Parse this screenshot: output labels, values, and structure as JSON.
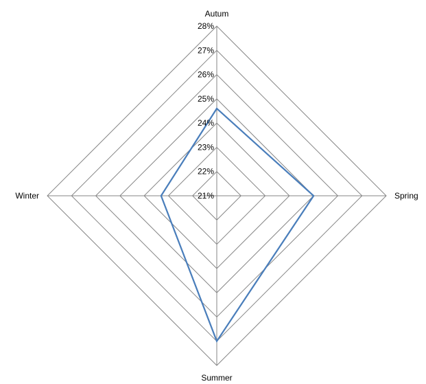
{
  "chart_data": {
    "type": "radar",
    "categories": [
      "Autum",
      "Spring",
      "Summer",
      "Winter"
    ],
    "series": [
      {
        "values": [
          0.246,
          0.25,
          0.27,
          0.233
        ],
        "color": "#4a7ebb"
      }
    ],
    "r_ticks": [
      "21%",
      "22%",
      "23%",
      "24%",
      "25%",
      "26%",
      "27%",
      "28%"
    ],
    "r_range": [
      0.21,
      0.28
    ],
    "grid": true,
    "legend": "none",
    "gridline_color": "#868686",
    "axis_color": "#868686"
  }
}
